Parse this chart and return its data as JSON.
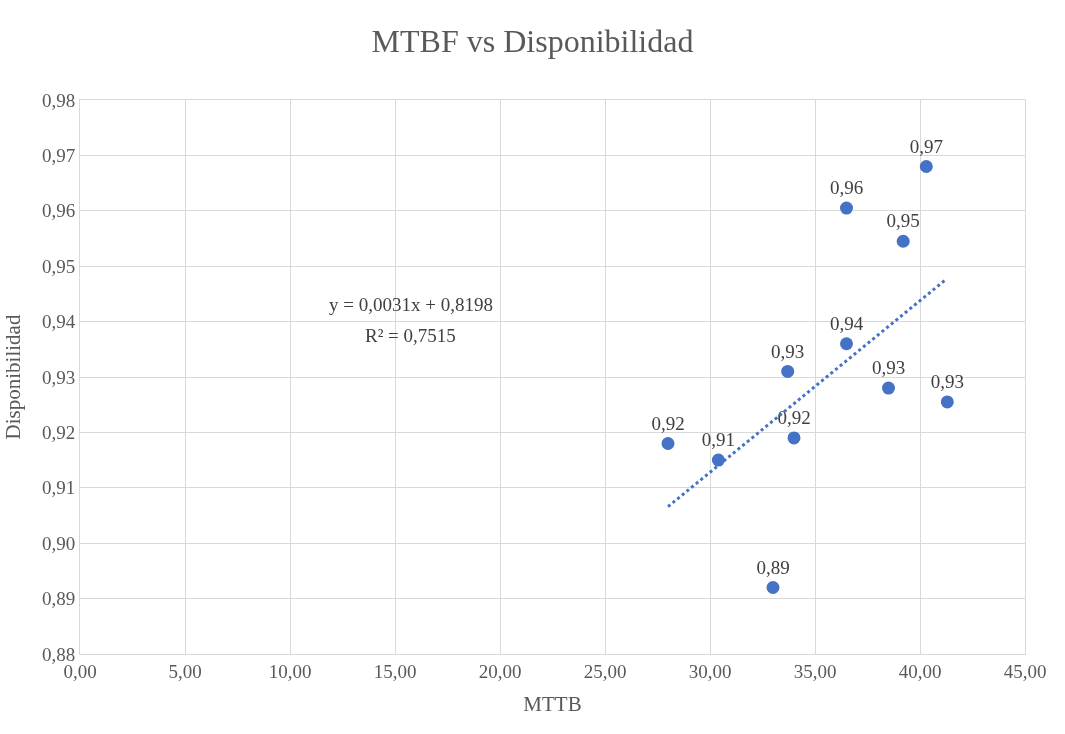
{
  "chart_data": {
    "type": "scatter",
    "title": "MTBF vs Disponibilidad",
    "xlabel": "MTTB",
    "ylabel": "Disponibilidad",
    "annotations": [
      "y = 0,0031x + 0,8198",
      "R² = 0,7515"
    ],
    "series": [
      {
        "color": "#4472c4",
        "marker": "circle",
        "x": [
          28.0,
          30.4,
          33.0,
          33.7,
          34.0,
          36.5,
          36.5,
          38.5,
          39.2,
          40.3,
          41.3
        ],
        "values": [
          0.918,
          0.915,
          0.892,
          0.931,
          0.919,
          0.9605,
          0.936,
          0.928,
          0.9545,
          0.968,
          0.9255
        ],
        "value_labels": [
          "0,92",
          "0,91",
          "0,89",
          "0,93",
          "0,92",
          "0,96",
          "0,94",
          "0,93",
          "0,95",
          "0,97",
          "0,93"
        ]
      },
      {
        "type": "line",
        "color": "#4472c4",
        "line_style": "dotted",
        "x": [
          28.0,
          41.2
        ],
        "values": [
          0.9066,
          0.9475
        ]
      }
    ],
    "xlim": [
      0,
      45
    ],
    "ylim": [
      0.88,
      0.98
    ],
    "xticks": [
      {
        "value": 0,
        "label": "0,00"
      },
      {
        "value": 5,
        "label": "5,00"
      },
      {
        "value": 10,
        "label": "10,00"
      },
      {
        "value": 15,
        "label": "15,00"
      },
      {
        "value": 20,
        "label": "20,00"
      },
      {
        "value": 25,
        "label": "25,00"
      },
      {
        "value": 30,
        "label": "30,00"
      },
      {
        "value": 35,
        "label": "35,00"
      },
      {
        "value": 40,
        "label": "40,00"
      },
      {
        "value": 45,
        "label": "45,00"
      }
    ],
    "yticks": [
      {
        "value": 0.88,
        "label": "0,88"
      },
      {
        "value": 0.89,
        "label": "0,89"
      },
      {
        "value": 0.9,
        "label": "0,90"
      },
      {
        "value": 0.91,
        "label": "0,91"
      },
      {
        "value": 0.92,
        "label": "0,92"
      },
      {
        "value": 0.93,
        "label": "0,93"
      },
      {
        "value": 0.94,
        "label": "0,94"
      },
      {
        "value": 0.95,
        "label": "0,95"
      },
      {
        "value": 0.96,
        "label": "0,96"
      },
      {
        "value": 0.97,
        "label": "0,97"
      },
      {
        "value": 0.98,
        "label": "0,98"
      }
    ],
    "grid": true
  }
}
